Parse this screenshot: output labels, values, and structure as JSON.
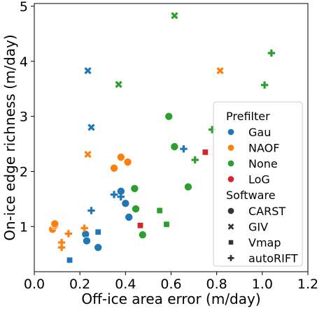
{
  "chart_data": {
    "type": "scatter",
    "xlabel": "Off-ice area error (m/day)",
    "ylabel": "On-ice edge richness (m/day)",
    "xlim": [
      0.0,
      1.2
    ],
    "ylim": [
      0.18,
      5.05
    ],
    "xticks": [
      "0.0",
      "0.2",
      "0.4",
      "0.6",
      "0.8",
      "1.0",
      "1.2"
    ],
    "yticks": [
      "1",
      "2",
      "3",
      "4",
      "5"
    ],
    "legend_placement": "lower-right",
    "legend": {
      "hue_title": "Prefilter",
      "hue_entries": [
        {
          "label": "Gau",
          "color": "#1f77b4"
        },
        {
          "label": "NAOF",
          "color": "#ff7f0e"
        },
        {
          "label": "None",
          "color": "#2ca02c"
        },
        {
          "label": "LoG",
          "color": "#d62728"
        }
      ],
      "style_title": "Software",
      "style_entries": [
        {
          "label": "CARST",
          "marker": "circle"
        },
        {
          "label": "GIV",
          "marker": "x"
        },
        {
          "label": "Vmap",
          "marker": "square"
        },
        {
          "label": "autoRIFT",
          "marker": "plus"
        }
      ]
    },
    "series": [
      {
        "prefilter": "Gau",
        "software": "CARST",
        "x": [
          0.225,
          0.23,
          0.28,
          0.38,
          0.4,
          0.415
        ],
        "y": [
          0.86,
          0.74,
          0.62,
          1.64,
          1.42,
          1.17
        ]
      },
      {
        "prefilter": "Gau",
        "software": "GIV",
        "x": [
          0.235,
          0.25
        ],
        "y": [
          3.83,
          2.8
        ]
      },
      {
        "prefilter": "Gau",
        "software": "Vmap",
        "x": [
          0.155,
          0.28
        ],
        "y": [
          0.39,
          0.9
        ]
      },
      {
        "prefilter": "Gau",
        "software": "autoRIFT",
        "x": [
          0.25,
          0.35,
          0.38,
          0.655
        ],
        "y": [
          1.29,
          1.58,
          1.54,
          2.41
        ]
      },
      {
        "prefilter": "NAOF",
        "software": "CARST",
        "x": [
          0.08,
          0.09,
          0.09,
          0.35,
          0.38,
          0.41
        ],
        "y": [
          0.95,
          1.02,
          1.05,
          2.06,
          2.26,
          2.17
        ]
      },
      {
        "prefilter": "NAOF",
        "software": "GIV",
        "x": [
          0.235,
          0.815
        ],
        "y": [
          2.31,
          3.83
        ]
      },
      {
        "prefilter": "NAOF",
        "software": "autoRIFT",
        "x": [
          0.12,
          0.12,
          0.15,
          0.22
        ],
        "y": [
          0.71,
          0.62,
          0.87,
          0.97
        ]
      },
      {
        "prefilter": "None",
        "software": "CARST",
        "x": [
          0.44,
          0.445,
          0.475,
          0.59,
          0.615,
          0.675
        ],
        "y": [
          1.69,
          1.32,
          0.85,
          3.0,
          2.45,
          1.72
        ]
      },
      {
        "prefilter": "None",
        "software": "GIV",
        "x": [
          0.37,
          0.615
        ],
        "y": [
          3.58,
          4.83
        ]
      },
      {
        "prefilter": "None",
        "software": "Vmap",
        "x": [
          0.55,
          0.58
        ],
        "y": [
          1.29,
          1.04
        ]
      },
      {
        "prefilter": "None",
        "software": "autoRIFT",
        "x": [
          0.705,
          0.78,
          1.01,
          1.04
        ],
        "y": [
          2.21,
          2.76,
          3.57,
          4.15
        ]
      },
      {
        "prefilter": "LoG",
        "software": "Vmap",
        "x": [
          0.465,
          0.75
        ],
        "y": [
          1.02,
          2.35
        ]
      }
    ]
  }
}
